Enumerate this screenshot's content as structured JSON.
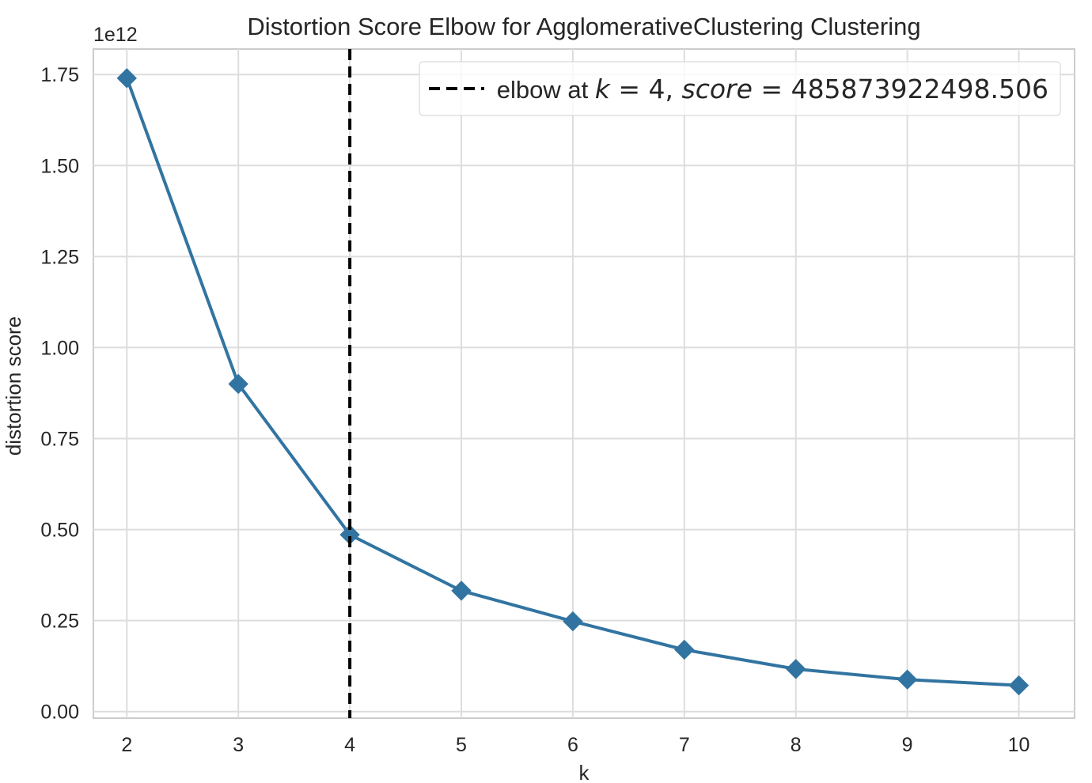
{
  "chart_data": {
    "type": "line",
    "title": "Distortion Score Elbow for AgglomerativeClustering Clustering",
    "xlabel": "k",
    "ylabel": "distortion score",
    "y_offset_label": "1e12",
    "x": [
      2,
      3,
      4,
      5,
      6,
      7,
      8,
      9,
      10
    ],
    "series": [
      {
        "values": [
          1740000000000,
          900000000000,
          485873922498.506,
          332000000000,
          248000000000,
          170000000000,
          117000000000,
          88000000000,
          72000000000
        ],
        "color": "#3274a1",
        "marker": "diamond"
      }
    ],
    "x_ticks": [
      2,
      3,
      4,
      5,
      6,
      7,
      8,
      9,
      10
    ],
    "x_tick_labels": [
      "2",
      "3",
      "4",
      "5",
      "6",
      "7",
      "8",
      "9",
      "10"
    ],
    "y_ticks": [
      0,
      0.25,
      0.5,
      0.75,
      1.0,
      1.25,
      1.5,
      1.75
    ],
    "y_tick_labels": [
      "0.00",
      "0.25",
      "0.50",
      "0.75",
      "1.00",
      "1.25",
      "1.50",
      "1.75"
    ],
    "y_tick_scale": 1000000000000,
    "xlim": [
      1.7,
      10.5
    ],
    "ylim": [
      -18000000000,
      1820000000000
    ],
    "grid": true,
    "elbow": {
      "k": 4,
      "score": 485873922498.506,
      "color": "#000000",
      "style": "dashed"
    },
    "legend": {
      "placement": "top-right",
      "entry": {
        "prefix": "elbow at ",
        "k_var": "k",
        "eq1": " = 4, ",
        "score_var": "score",
        "eq2": " = 485873922498.506"
      }
    }
  }
}
